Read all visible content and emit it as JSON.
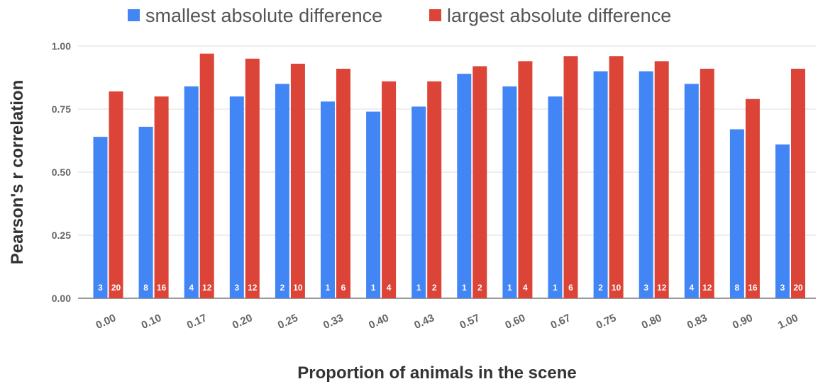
{
  "chart_data": {
    "type": "bar",
    "title": "",
    "xlabel": "Proportion of animals in the scene",
    "ylabel": "Pearson's r correlation",
    "ylim": [
      0,
      1
    ],
    "yticks": [
      "0.00",
      "0.25",
      "0.50",
      "0.75",
      "1.00"
    ],
    "grid": true,
    "legend_position": "top",
    "categories": [
      "0.00",
      "0.10",
      "0.17",
      "0.20",
      "0.25",
      "0.33",
      "0.40",
      "0.43",
      "0.57",
      "0.60",
      "0.67",
      "0.75",
      "0.80",
      "0.83",
      "0.90",
      "1.00"
    ],
    "series": [
      {
        "name": "smallest absolute difference",
        "color": "#4285F4",
        "values": [
          0.64,
          0.68,
          0.84,
          0.8,
          0.85,
          0.78,
          0.74,
          0.76,
          0.89,
          0.84,
          0.8,
          0.9,
          0.9,
          0.85,
          0.67,
          0.61
        ],
        "labels": [
          "3",
          "8",
          "4",
          "3",
          "2",
          "1",
          "1",
          "1",
          "1",
          "1",
          "1",
          "2",
          "3",
          "4",
          "8",
          "3"
        ]
      },
      {
        "name": "largest absolute difference",
        "color": "#DB4437",
        "values": [
          0.82,
          0.8,
          0.97,
          0.95,
          0.93,
          0.91,
          0.86,
          0.86,
          0.92,
          0.94,
          0.96,
          0.96,
          0.94,
          0.91,
          0.79,
          0.91
        ],
        "labels": [
          "20",
          "16",
          "12",
          "12",
          "10",
          "6",
          "4",
          "2",
          "2",
          "4",
          "6",
          "10",
          "12",
          "12",
          "16",
          "20"
        ]
      }
    ]
  }
}
